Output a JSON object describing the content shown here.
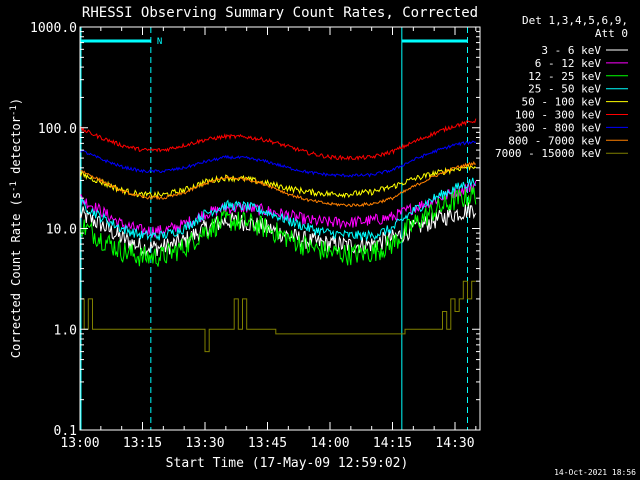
{
  "chart_data": {
    "type": "line",
    "title": "RHESSI Observing Summary Count Rates, Corrected",
    "xlabel": "Start Time (17-May-09 12:59:02)",
    "ylabel_main": "Corrected Count Rate (s",
    "ylabel_sup1": "-1",
    "ylabel_mid": " detector",
    "ylabel_sup2": "-1",
    "ylabel_end": ")",
    "yscale": "log",
    "ylim": [
      0.1,
      1000
    ],
    "xlim_minutes": [
      0,
      96
    ],
    "x_ticks": [
      {
        "minute": 0,
        "label": "13:00"
      },
      {
        "minute": 15,
        "label": "13:15"
      },
      {
        "minute": 30,
        "label": "13:30"
      },
      {
        "minute": 45,
        "label": "13:45"
      },
      {
        "minute": 60,
        "label": "14:00"
      },
      {
        "minute": 75,
        "label": "14:15"
      },
      {
        "minute": 90,
        "label": "14:30"
      }
    ],
    "y_ticks": [
      {
        "value": 0.1,
        "label": "0.1"
      },
      {
        "value": 1,
        "label": "1.0"
      },
      {
        "value": 10,
        "label": "10.0"
      },
      {
        "value": 100,
        "label": "100.0"
      },
      {
        "value": 1000,
        "label": "1000.0"
      }
    ],
    "legend_header": [
      "Det 1,3,4,5,6,9,",
      "Att 0"
    ],
    "legend_placement": "top-right",
    "timestamp": "14-Oct-2021 18:56",
    "night_marker_label": "N",
    "night_intervals_minutes": [
      [
        0,
        17
      ],
      [
        77,
        93
      ]
    ],
    "series": [
      {
        "name": "3 - 6 keV",
        "color": "#ffffff",
        "noise": 0.09,
        "x": [
          0,
          5,
          10,
          15,
          20,
          25,
          30,
          35,
          40,
          45,
          50,
          55,
          60,
          65,
          70,
          75,
          80,
          85,
          90,
          95
        ],
        "y": [
          14,
          11,
          8,
          6.5,
          6.5,
          7.5,
          10,
          12,
          11.5,
          10,
          8.5,
          7.5,
          7,
          6.8,
          7,
          8,
          10,
          12,
          14,
          16
        ]
      },
      {
        "name": "6 - 12 keV",
        "color": "#ff00ff",
        "noise": 0.06,
        "x": [
          0,
          5,
          10,
          15,
          20,
          25,
          30,
          35,
          40,
          45,
          50,
          55,
          60,
          65,
          70,
          75,
          80,
          85,
          90,
          95
        ],
        "y": [
          20,
          15,
          11,
          9.5,
          9.5,
          11,
          14,
          16,
          16,
          15,
          13.5,
          12,
          11.5,
          11.5,
          12,
          13,
          16,
          19,
          23,
          27
        ]
      },
      {
        "name": "12 - 25 keV",
        "color": "#00ff00",
        "noise": 0.11,
        "x": [
          0,
          5,
          10,
          15,
          20,
          25,
          30,
          35,
          40,
          45,
          50,
          55,
          60,
          65,
          70,
          75,
          80,
          85,
          90,
          95
        ],
        "y": [
          11,
          8,
          6,
          5.2,
          5.3,
          6.5,
          9.5,
          12,
          11.5,
          10,
          8,
          6.5,
          5.8,
          5.5,
          5.8,
          7,
          11,
          15,
          19,
          22
        ]
      },
      {
        "name": "25 - 50 keV",
        "color": "#00ffff",
        "noise": 0.05,
        "x": [
          0,
          5,
          10,
          15,
          20,
          25,
          30,
          35,
          40,
          45,
          50,
          55,
          60,
          65,
          70,
          75,
          80,
          85,
          90,
          95
        ],
        "y": [
          18,
          13,
          10,
          8.5,
          8.5,
          10,
          14,
          17,
          16.5,
          14.5,
          12,
          10,
          9,
          8.5,
          8.5,
          10,
          15,
          20,
          25,
          30
        ]
      },
      {
        "name": "50 - 100 keV",
        "color": "#ffff00",
        "noise": 0.03,
        "x": [
          0,
          5,
          10,
          15,
          20,
          25,
          30,
          35,
          40,
          45,
          50,
          55,
          60,
          65,
          70,
          75,
          80,
          85,
          90,
          95
        ],
        "y": [
          35,
          29,
          24,
          21.5,
          21.5,
          24,
          29,
          32,
          31,
          28,
          25,
          23,
          22,
          22,
          23,
          26,
          31,
          35,
          39,
          42
        ]
      },
      {
        "name": "100 - 300 keV",
        "color": "#ff0000",
        "noise": 0.02,
        "x": [
          0,
          5,
          10,
          15,
          20,
          25,
          30,
          35,
          40,
          45,
          50,
          55,
          60,
          65,
          70,
          75,
          80,
          85,
          90,
          95
        ],
        "y": [
          98,
          80,
          67,
          60,
          60,
          67,
          76,
          82,
          81,
          75,
          65,
          56,
          51,
          50,
          51,
          58,
          72,
          88,
          105,
          118
        ]
      },
      {
        "name": "300 - 800 keV",
        "color": "#0000ff",
        "noise": 0.015,
        "x": [
          0,
          5,
          10,
          15,
          20,
          25,
          30,
          35,
          40,
          45,
          50,
          55,
          60,
          65,
          70,
          75,
          80,
          85,
          90,
          95
        ],
        "y": [
          60,
          49,
          41,
          37,
          37,
          40,
          46,
          51,
          50,
          46,
          40,
          36,
          34,
          33.5,
          34,
          38,
          48,
          58,
          68,
          73
        ]
      },
      {
        "name": "800 - 7000 keV",
        "color": "#ff8000",
        "noise": 0.015,
        "x": [
          0,
          5,
          10,
          15,
          20,
          25,
          30,
          35,
          40,
          45,
          50,
          55,
          60,
          65,
          70,
          75,
          80,
          85,
          90,
          95
        ],
        "y": [
          38,
          30,
          23.5,
          20.5,
          20,
          22.5,
          28,
          32,
          31,
          27,
          22,
          19,
          17.5,
          17,
          17.5,
          20,
          26,
          33,
          40,
          45
        ]
      },
      {
        "name": "7000 - 15000 keV",
        "color": "#808000",
        "noise": 0,
        "x": [
          0,
          1,
          2,
          3,
          4,
          5,
          9,
          29,
          30,
          31,
          32,
          33,
          34,
          35,
          36,
          37,
          38,
          39,
          40,
          41,
          42,
          43,
          44,
          45,
          46,
          47,
          78,
          79,
          80,
          82,
          84,
          85,
          86,
          87,
          88,
          89,
          90,
          91,
          92,
          93,
          94,
          95
        ],
        "y": [
          2,
          1,
          2,
          1,
          1,
          1,
          1,
          1,
          0.6,
          1,
          1,
          1,
          1,
          1,
          1,
          2,
          1,
          2,
          1,
          1,
          1,
          1,
          1,
          1,
          1,
          0.9,
          1,
          1,
          1,
          1,
          1,
          1,
          1,
          1.5,
          1,
          2,
          1.5,
          2,
          3,
          2,
          3,
          3
        ]
      }
    ]
  }
}
